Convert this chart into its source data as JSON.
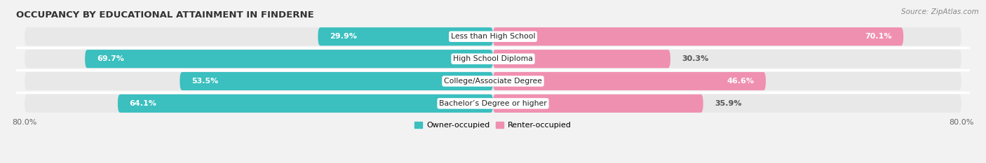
{
  "title": "OCCUPANCY BY EDUCATIONAL ATTAINMENT IN FINDERNE",
  "source": "Source: ZipAtlas.com",
  "categories": [
    "Less than High School",
    "High School Diploma",
    "College/Associate Degree",
    "Bachelor’s Degree or higher"
  ],
  "owner_values": [
    29.9,
    69.7,
    53.5,
    64.1
  ],
  "renter_values": [
    70.1,
    30.3,
    46.6,
    35.9
  ],
  "owner_color": "#3BBFBF",
  "renter_color": "#F090B0",
  "background_color": "#f2f2f2",
  "row_bg_color": "#e8e8e8",
  "axis_max": 80.0,
  "bar_height": 0.82,
  "title_fontsize": 9.5,
  "label_fontsize": 8.0,
  "cat_fontsize": 7.8,
  "tick_fontsize": 8.0,
  "legend_fontsize": 8.0,
  "source_fontsize": 7.5
}
